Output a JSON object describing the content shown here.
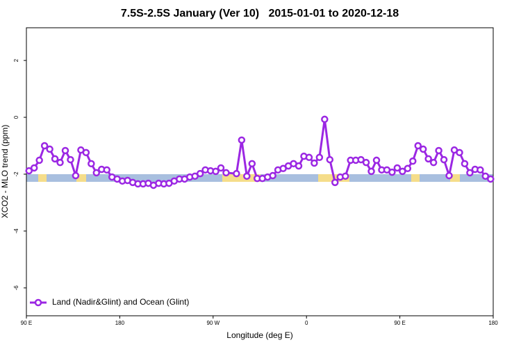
{
  "chart_data": {
    "type": "line",
    "title": "7.5S-2.5S January (Ver 10)   2015-01-01 to 2020-12-18",
    "x_label": "Longitude (deg E)",
    "y_label": "XCO2 - MLO trend (ppm)",
    "xlim": [
      90,
      540
    ],
    "ylim": [
      -6.98,
      3.15
    ],
    "xticks": [
      {
        "value": 90,
        "label": "90 E"
      },
      180,
      {
        "value": 270,
        "label": "90 W"
      },
      {
        "value": 360,
        "label": "0"
      },
      {
        "value": 450,
        "label": "90 E"
      },
      {
        "value": 540,
        "label": "180"
      }
    ],
    "yticks": [
      -6,
      -4,
      -2,
      0,
      2
    ],
    "legend": "bottomleft",
    "series": [
      {
        "name": "Land (Nadir&Glint) and Ocean (Glint)",
        "color": "#9b27e3",
        "x": [
          92.5,
          97.5,
          102.5,
          107.5,
          112.5,
          117.5,
          122.5,
          127.5,
          132.5,
          137.5,
          142.5,
          147.5,
          152.5,
          157.5,
          162.5,
          167.5,
          172.5,
          177.5,
          182.5,
          187.5,
          192.5,
          197.5,
          202.5,
          207.5,
          212.5,
          217.5,
          222.5,
          227.5,
          232.5,
          237.5,
          242.5,
          247.5,
          252.5,
          257.5,
          262.5,
          267.5,
          272.5,
          277.5,
          282.5,
          292.5,
          297.5,
          302.5,
          307.5,
          312.5,
          317.5,
          322.5,
          327.5,
          332.5,
          337.5,
          342.5,
          347.5,
          352.5,
          357.5,
          362.5,
          367.5,
          372.5,
          377.5,
          382.5,
          387.5,
          392.5,
          397.5,
          402.5,
          407.5,
          412.5,
          417.5,
          422.5,
          427.5,
          432.5,
          437.5,
          442.5,
          447.5,
          452.5,
          457.5,
          462.5,
          467.5,
          472.5,
          477.5,
          482.5,
          487.5,
          492.5,
          497.5,
          502.5,
          507.5,
          512.5,
          517.5,
          522.5,
          527.5,
          532.5,
          537.5
        ],
        "values": [
          -1.88,
          -1.78,
          -1.51,
          -1.0,
          -1.12,
          -1.46,
          -1.59,
          -1.17,
          -1.49,
          -2.05,
          -1.15,
          -1.24,
          -1.63,
          -1.95,
          -1.83,
          -1.85,
          -2.1,
          -2.17,
          -2.24,
          -2.22,
          -2.29,
          -2.34,
          -2.34,
          -2.32,
          -2.39,
          -2.32,
          -2.34,
          -2.32,
          -2.24,
          -2.17,
          -2.17,
          -2.1,
          -2.07,
          -1.98,
          -1.85,
          -1.88,
          -1.9,
          -1.78,
          -1.95,
          -1.98,
          -0.8,
          -2.07,
          -1.63,
          -2.15,
          -2.15,
          -2.1,
          -2.05,
          -1.85,
          -1.8,
          -1.71,
          -1.63,
          -1.71,
          -1.37,
          -1.41,
          -1.61,
          -1.41,
          -0.07,
          -1.49,
          -2.29,
          -2.1,
          -2.07,
          -1.51,
          -1.51,
          -1.49,
          -1.59,
          -1.9,
          -1.51,
          -1.85,
          -1.85,
          -1.93,
          -1.78,
          -1.9,
          -1.8,
          -1.54,
          -1.0,
          -1.12,
          -1.46,
          -1.59,
          -1.17,
          -1.49,
          -2.05,
          -1.15,
          -1.24,
          -1.63,
          -1.95,
          -1.83,
          -1.85,
          -2.07,
          -2.17
        ]
      }
    ]
  }
}
